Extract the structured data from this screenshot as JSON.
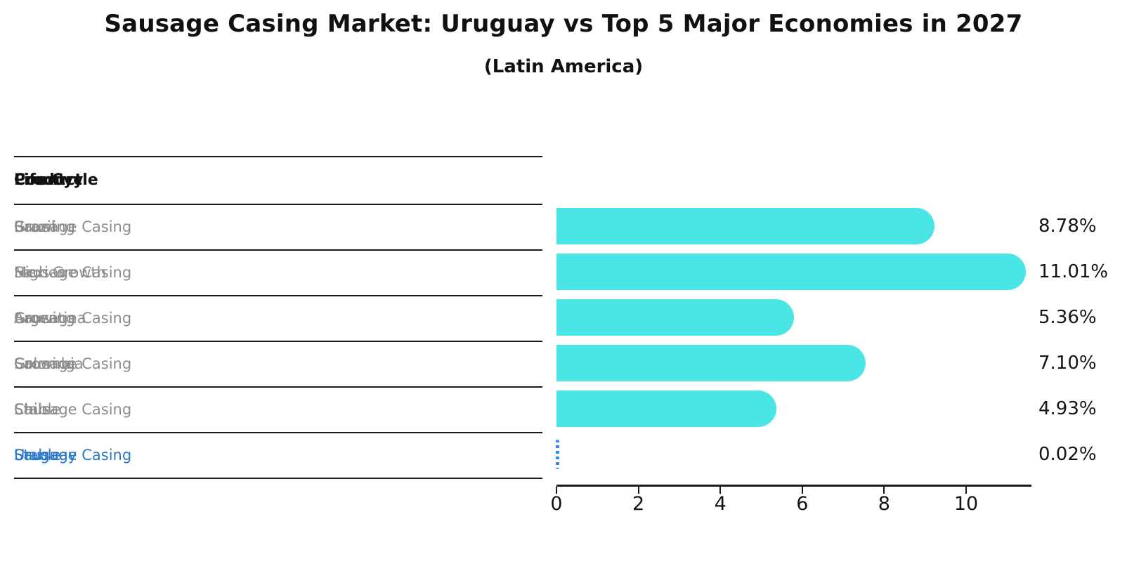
{
  "title": "Sausage Casing Market: Uruguay vs Top 5 Major Economies in 2027",
  "subtitle": "(Latin America)",
  "colors": {
    "bar": "#4AE6E6",
    "highlight_text": "#2878C8",
    "highlight_bar": "#3A86E8",
    "table_text": "#8C8C8C",
    "text": "#111111"
  },
  "table": {
    "headers": [
      "Country",
      "Product",
      "Life Cycle"
    ],
    "rows": [
      {
        "country": "Brazil",
        "product": "Sausage Casing",
        "life_cycle": "Growing",
        "highlight": false
      },
      {
        "country": "Mexico",
        "product": "Sausage Casing",
        "life_cycle": "High Growth",
        "highlight": false
      },
      {
        "country": "Argentina",
        "product": "Sausage Casing",
        "life_cycle": "Growing",
        "highlight": false
      },
      {
        "country": "Colombia",
        "product": "Sausage Casing",
        "life_cycle": "Growing",
        "highlight": false
      },
      {
        "country": "Chile",
        "product": "Sausage Casing",
        "life_cycle": "Stable",
        "highlight": false
      },
      {
        "country": "Uruguay",
        "product": "Sausage Casing",
        "life_cycle": "Stable",
        "highlight": true
      }
    ]
  },
  "chart_data": {
    "type": "bar",
    "orientation": "horizontal",
    "title": "Sausage Casing Market: Uruguay vs Top 5 Major Economies in 2027 (Latin America)",
    "xlabel": "",
    "ylabel": "",
    "categories": [
      "Brazil",
      "Mexico",
      "Argentina",
      "Colombia",
      "Chile",
      "Uruguay"
    ],
    "values": [
      8.78,
      11.01,
      5.36,
      7.1,
      4.93,
      0.02
    ],
    "value_labels": [
      "8.78%",
      "11.01%",
      "5.36%",
      "7.10%",
      "4.93%",
      "0.02%"
    ],
    "x_ticks": [
      0,
      2,
      4,
      6,
      8,
      10
    ],
    "xlim": [
      0,
      11.6
    ],
    "grid": false,
    "legend": false,
    "highlight_index": 5
  }
}
